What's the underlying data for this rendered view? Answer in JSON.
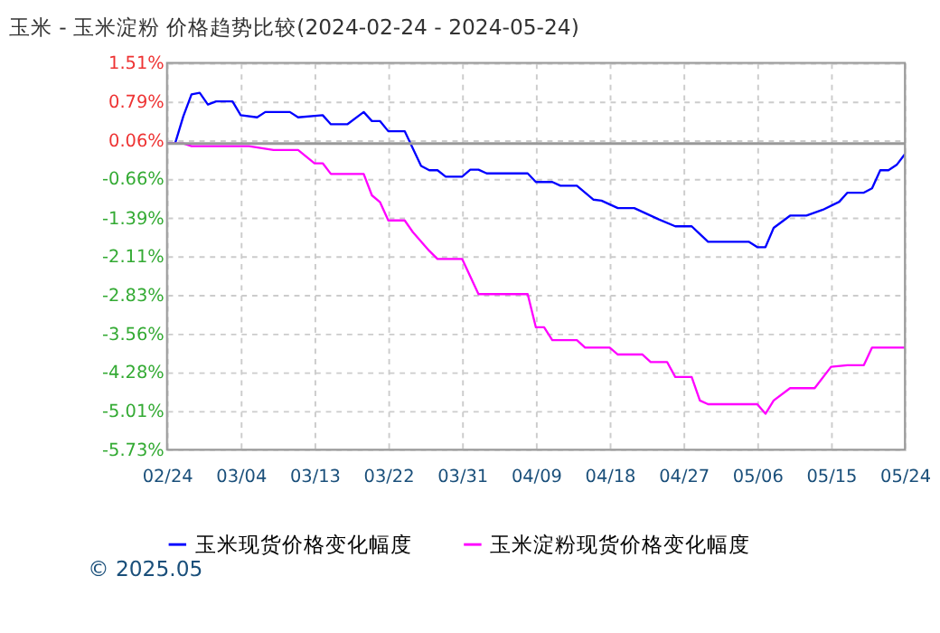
{
  "chart_data": {
    "type": "line",
    "title": "玉米 - 玉米淀粉 价格趋势比较(2024-02-24 - 2024-05-24)",
    "xlim": [
      "2024-02-24",
      "2024-05-24"
    ],
    "xticks": [
      {
        "value": "2024-02-24",
        "label": "02/24"
      },
      {
        "value": "2024-03-04",
        "label": "03/04"
      },
      {
        "value": "2024-03-13",
        "label": "03/13"
      },
      {
        "value": "2024-03-22",
        "label": "03/22"
      },
      {
        "value": "2024-03-31",
        "label": "03/31"
      },
      {
        "value": "2024-04-09",
        "label": "04/09"
      },
      {
        "value": "2024-04-18",
        "label": "04/18"
      },
      {
        "value": "2024-04-27",
        "label": "04/27"
      },
      {
        "value": "2024-05-06",
        "label": "05/06"
      },
      {
        "value": "2024-05-15",
        "label": "05/15"
      },
      {
        "value": "2024-05-24",
        "label": "05/24"
      }
    ],
    "ylim": [
      -5.73,
      1.51
    ],
    "yticks": [
      {
        "value": 1.51,
        "label": "1.51%"
      },
      {
        "value": 0.79,
        "label": "0.79%"
      },
      {
        "value": 0.06,
        "label": "0.06%"
      },
      {
        "value": -0.66,
        "label": "-0.66%"
      },
      {
        "value": -1.39,
        "label": "-1.39%"
      },
      {
        "value": -2.11,
        "label": "-2.11%"
      },
      {
        "value": -2.83,
        "label": "-2.83%"
      },
      {
        "value": -3.56,
        "label": "-3.56%"
      },
      {
        "value": -4.28,
        "label": "-4.28%"
      },
      {
        "value": -5.01,
        "label": "-5.01%"
      },
      {
        "value": -5.73,
        "label": "-5.73%"
      }
    ],
    "grid": true,
    "legend": "bottom",
    "marker": "none",
    "line_style": "solid",
    "ref_lines": [
      {
        "axis": "y",
        "value": 0,
        "color": "#999999"
      }
    ],
    "annotations": [
      "© 2025.05"
    ],
    "series": [
      {
        "name": "玉米现货价格变化幅度",
        "color": "#0000ff",
        "x": [
          "2024-02-24",
          "2024-02-25",
          "2024-02-26",
          "2024-02-27",
          "2024-02-28",
          "2024-02-29",
          "2024-03-01",
          "2024-03-03",
          "2024-03-04",
          "2024-03-06",
          "2024-03-07",
          "2024-03-10",
          "2024-03-11",
          "2024-03-14",
          "2024-03-15",
          "2024-03-17",
          "2024-03-19",
          "2024-03-20",
          "2024-03-21",
          "2024-03-22",
          "2024-03-24",
          "2024-03-26",
          "2024-03-27",
          "2024-03-28",
          "2024-03-29",
          "2024-03-31",
          "2024-04-01",
          "2024-04-02",
          "2024-04-03",
          "2024-04-08",
          "2024-04-09",
          "2024-04-11",
          "2024-04-12",
          "2024-04-14",
          "2024-04-16",
          "2024-04-17",
          "2024-04-19",
          "2024-04-21",
          "2024-04-24",
          "2024-04-26",
          "2024-04-28",
          "2024-04-30",
          "2024-05-05",
          "2024-05-06",
          "2024-05-07",
          "2024-05-08",
          "2024-05-10",
          "2024-05-12",
          "2024-05-14",
          "2024-05-16",
          "2024-05-17",
          "2024-05-19",
          "2024-05-20",
          "2024-05-21",
          "2024-05-22",
          "2024-05-23",
          "2024-05-24"
        ],
        "values": [
          0,
          0,
          0.51,
          0.92,
          0.95,
          0.73,
          0.79,
          0.79,
          0.53,
          0.49,
          0.59,
          0.59,
          0.49,
          0.53,
          0.36,
          0.36,
          0.59,
          0.42,
          0.42,
          0.23,
          0.23,
          -0.42,
          -0.5,
          -0.5,
          -0.62,
          -0.62,
          -0.49,
          -0.49,
          -0.56,
          -0.56,
          -0.72,
          -0.72,
          -0.79,
          -0.79,
          -1.05,
          -1.07,
          -1.21,
          -1.21,
          -1.42,
          -1.55,
          -1.55,
          -1.84,
          -1.84,
          -1.94,
          -1.94,
          -1.58,
          -1.35,
          -1.35,
          -1.24,
          -1.09,
          -0.92,
          -0.92,
          -0.84,
          -0.5,
          -0.5,
          -0.4,
          -0.2
        ]
      },
      {
        "name": "玉米淀粉现货价格变化幅度",
        "color": "#ff00ff",
        "x": [
          "2024-02-24",
          "2024-02-26",
          "2024-02-27",
          "2024-03-05",
          "2024-03-08",
          "2024-03-11",
          "2024-03-13",
          "2024-03-14",
          "2024-03-15",
          "2024-03-19",
          "2024-03-20",
          "2024-03-21",
          "2024-03-22",
          "2024-03-24",
          "2024-03-25",
          "2024-03-27",
          "2024-03-28",
          "2024-03-31",
          "2024-04-02",
          "2024-04-08",
          "2024-04-09",
          "2024-04-10",
          "2024-04-11",
          "2024-04-14",
          "2024-04-15",
          "2024-04-18",
          "2024-04-19",
          "2024-04-22",
          "2024-04-23",
          "2024-04-25",
          "2024-04-26",
          "2024-04-28",
          "2024-04-29",
          "2024-04-30",
          "2024-05-06",
          "2024-05-07",
          "2024-05-08",
          "2024-05-10",
          "2024-05-13",
          "2024-05-15",
          "2024-05-17",
          "2024-05-19",
          "2024-05-20",
          "2024-05-24"
        ],
        "values": [
          0,
          0,
          -0.05,
          -0.05,
          -0.12,
          -0.12,
          -0.37,
          -0.37,
          -0.57,
          -0.57,
          -0.97,
          -1.1,
          -1.44,
          -1.44,
          -1.66,
          -2.01,
          -2.16,
          -2.16,
          -2.82,
          -2.82,
          -3.44,
          -3.44,
          -3.68,
          -3.68,
          -3.82,
          -3.82,
          -3.95,
          -3.95,
          -4.09,
          -4.09,
          -4.37,
          -4.37,
          -4.81,
          -4.88,
          -4.88,
          -5.06,
          -4.81,
          -4.58,
          -4.58,
          -4.18,
          -4.15,
          -4.15,
          -3.82,
          -3.82
        ]
      }
    ]
  }
}
